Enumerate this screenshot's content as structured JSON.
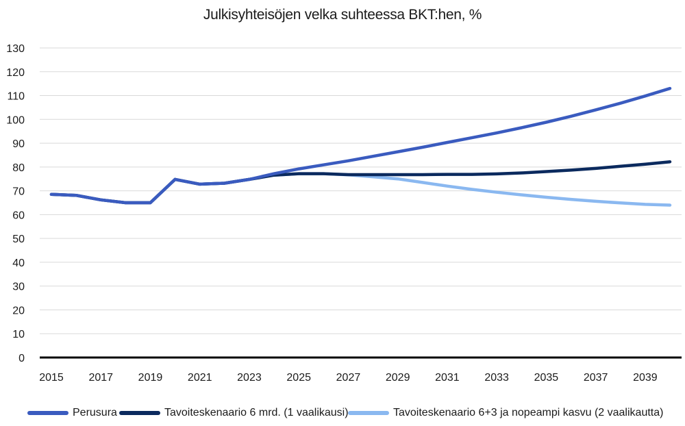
{
  "chart_data": {
    "type": "line",
    "title": "Julkisyhteisöjen velka suhteessa BKT:hen, %",
    "xlabel": "",
    "ylabel": "",
    "ylim": [
      0,
      130
    ],
    "yticks": [
      "0",
      "10",
      "20",
      "30",
      "40",
      "50",
      "60",
      "70",
      "80",
      "90",
      "100",
      "110",
      "120",
      "130"
    ],
    "xtick_labels": [
      "2015",
      "2017",
      "2019",
      "2021",
      "2023",
      "2025",
      "2027",
      "2029",
      "2031",
      "2033",
      "2035",
      "2037",
      "2039"
    ],
    "x": [
      2015,
      2016,
      2017,
      2018,
      2019,
      2020,
      2021,
      2022,
      2023,
      2024,
      2025,
      2026,
      2027,
      2028,
      2029,
      2030,
      2031,
      2032,
      2033,
      2034,
      2035,
      2036,
      2037,
      2038,
      2039,
      2040
    ],
    "grid": true,
    "legend_position": "bottom",
    "series": [
      {
        "name": "Perusura",
        "color": "#3a5bbf",
        "values": [
          68.5,
          68.1,
          66.2,
          65.0,
          65.0,
          74.8,
          72.8,
          73.2,
          74.8,
          77.2,
          79.2,
          80.9,
          82.6,
          84.5,
          86.4,
          88.3,
          90.3,
          92.3,
          94.3,
          96.5,
          98.8,
          101.3,
          104.0,
          106.8,
          109.8,
          113.0
        ]
      },
      {
        "name": "Tavoiteskenaario 6 mrd. (1 vaalikausi)",
        "color": "#0b2a5e",
        "values": [
          68.5,
          68.1,
          66.2,
          65.0,
          65.0,
          74.8,
          72.8,
          73.2,
          74.8,
          76.6,
          77.2,
          77.2,
          76.8,
          76.8,
          76.8,
          76.8,
          76.9,
          76.9,
          77.1,
          77.5,
          78.1,
          78.7,
          79.4,
          80.3,
          81.2,
          82.2
        ]
      },
      {
        "name": "Tavoiteskenaario 6+3 ja nopeampi kasvu (2 vaalikautta)",
        "color": "#8ab8f0",
        "values": [
          68.5,
          68.1,
          66.2,
          65.0,
          65.0,
          74.8,
          72.8,
          73.2,
          74.8,
          76.6,
          77.2,
          77.2,
          76.7,
          75.9,
          75.0,
          73.5,
          72.0,
          70.6,
          69.4,
          68.3,
          67.3,
          66.4,
          65.6,
          64.9,
          64.3,
          64.0
        ]
      }
    ]
  }
}
